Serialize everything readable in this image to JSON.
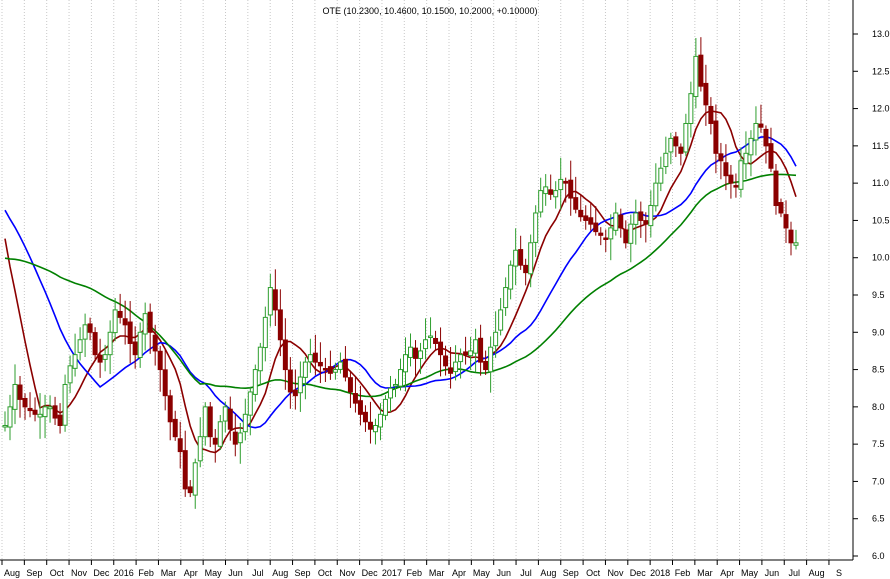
{
  "chart_data": {
    "type": "candlestick",
    "title": "OTE (10.2300, 10.4600, 10.1500, 10.2000, +0.10000)",
    "ylim": [
      6.0,
      13.25
    ],
    "y_ticks": [
      "6.0",
      "6.5",
      "7.0",
      "7.5",
      "8.0",
      "8.5",
      "9.0",
      "9.5",
      "10.0",
      "10.5",
      "11.0",
      "11.5",
      "12.0",
      "12.5",
      "13.0"
    ],
    "y_tick_values": [
      6.0,
      6.5,
      7.0,
      7.5,
      8.0,
      8.5,
      9.0,
      9.5,
      10.0,
      10.5,
      11.0,
      11.5,
      12.0,
      12.5,
      13.0
    ],
    "x_labels": [
      "Aug",
      "Sep",
      "Oct",
      "Nov",
      "Dec",
      "2016",
      "Feb",
      "Mar",
      "Apr",
      "May",
      "Jun",
      "Jul",
      "Aug",
      "Sep",
      "Oct",
      "Nov",
      "Dec",
      "2017",
      "Feb",
      "Mar",
      "Apr",
      "May",
      "Jun",
      "Jul",
      "Aug",
      "Sep",
      "Oct",
      "Nov",
      "Dec",
      "2018",
      "Feb",
      "Mar",
      "Apr",
      "May",
      "Jun",
      "Jul",
      "Aug",
      "S"
    ],
    "grid": "vertical-dotted",
    "colors": {
      "up": "#2e9e2e",
      "down": "#8b0000",
      "ma_short": "#8b0000",
      "ma_mid": "#0000ff",
      "ma_long": "#008000",
      "grid": "#c8c8c8"
    },
    "candles": {
      "close": [
        7.75,
        8.0,
        8.3,
        8.1,
        8.0,
        7.95,
        7.9,
        7.9,
        8.0,
        8.0,
        7.85,
        7.75,
        8.3,
        8.55,
        8.7,
        8.9,
        9.1,
        9.0,
        8.7,
        8.6,
        8.7,
        9.0,
        9.3,
        9.2,
        9.1,
        8.85,
        8.7,
        9.0,
        9.25,
        9.0,
        8.75,
        8.5,
        8.15,
        7.8,
        7.6,
        7.4,
        6.9,
        6.85,
        7.25,
        7.6,
        8.0,
        7.6,
        7.5,
        7.8,
        8.0,
        7.7,
        7.5,
        7.65,
        7.9,
        8.2,
        8.5,
        8.8,
        9.2,
        9.6,
        9.3,
        8.9,
        8.5,
        8.2,
        8.15,
        8.4,
        8.6,
        8.7,
        8.6,
        8.55,
        8.5,
        8.45,
        8.5,
        8.6,
        8.4,
        8.2,
        8.05,
        7.9,
        7.8,
        7.7,
        7.75,
        7.9,
        8.1,
        8.25,
        8.3,
        8.5,
        8.7,
        8.8,
        8.65,
        8.75,
        8.9,
        8.95,
        8.85,
        8.7,
        8.55,
        8.45,
        8.6,
        8.7,
        8.7,
        8.75,
        8.9,
        8.6,
        8.5,
        8.8,
        9.0,
        9.3,
        9.6,
        9.9,
        10.1,
        9.9,
        9.8,
        10.2,
        10.6,
        10.9,
        10.95,
        10.85,
        10.9,
        11.05,
        11.0,
        10.8,
        10.65,
        10.55,
        10.5,
        10.45,
        10.35,
        10.3,
        10.25,
        10.4,
        10.6,
        10.4,
        10.2,
        10.45,
        10.6,
        10.5,
        10.45,
        10.7,
        11.0,
        11.2,
        11.4,
        11.6,
        11.5,
        11.4,
        11.8,
        12.2,
        12.7,
        12.3,
        12.05,
        11.8,
        11.4,
        11.3,
        11.1,
        11.0,
        10.95,
        11.3,
        11.4,
        11.6,
        11.8,
        11.75,
        11.5,
        11.2,
        10.7,
        10.6,
        10.4,
        10.2,
        10.2
      ],
      "open_offset_sign": "derived"
    },
    "series": [
      {
        "name": "",
        "color": "#8b0000"
      },
      {
        "name": "",
        "color": "#0000ff"
      },
      {
        "name": "",
        "color": "#008000"
      }
    ]
  }
}
